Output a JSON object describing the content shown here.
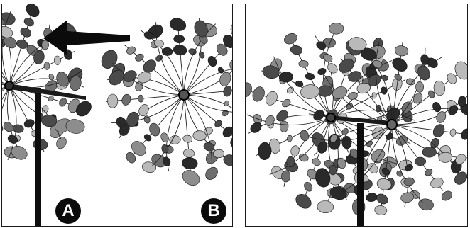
{
  "labels": {
    "a": "A",
    "b": "B"
  },
  "colors": {
    "frame": "#1a1a1a",
    "pole": "#0e0e0e",
    "wire": "#222222",
    "petal_dark": "#2a2a2a",
    "petal_mid": "#6e6e6e",
    "petal_light": "#b9b9b9",
    "arrow": "#0b0b0b"
  },
  "icons": {
    "arrow": "left-arrow-icon"
  }
}
